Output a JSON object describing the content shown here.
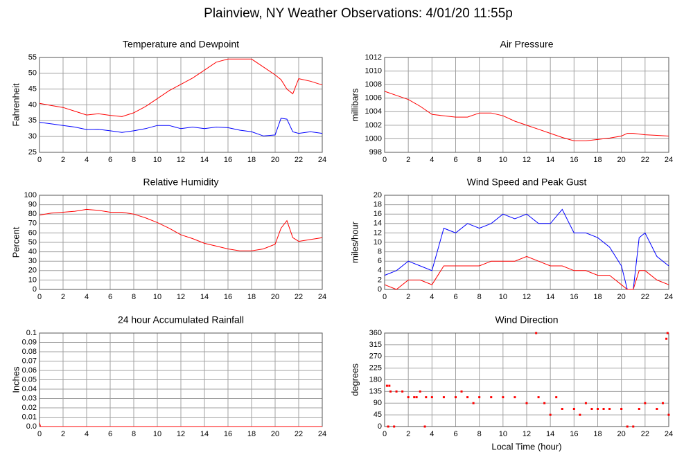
{
  "title": "Plainview, NY Weather Observations: 4/01/20 11:55p",
  "chart_data": [
    {
      "type": "line",
      "title": "Temperature and Dewpoint",
      "ylabel": "Fahrenheit",
      "x": [
        0,
        1,
        2,
        3,
        4,
        5,
        6,
        7,
        8,
        9,
        10,
        11,
        12,
        13,
        14,
        15,
        16,
        17,
        18,
        19,
        20,
        20.5,
        21,
        21.5,
        22,
        23,
        24
      ],
      "series": [
        {
          "color": "#ff0000",
          "values": [
            40.5,
            39.8,
            39.2,
            38,
            36.8,
            37.2,
            36.7,
            36.3,
            37.5,
            39.5,
            42,
            44.5,
            46.5,
            48.5,
            51,
            53.5,
            54.5,
            54.5,
            54.5,
            52,
            49.5,
            48,
            45,
            43.5,
            48.3,
            47.5,
            46.3
          ]
        },
        {
          "color": "#0000ff",
          "values": [
            34.5,
            34,
            33.5,
            33,
            32.2,
            32.3,
            31.8,
            31.3,
            31.8,
            32.5,
            33.5,
            33.5,
            32.5,
            33,
            32.5,
            33,
            32.8,
            32,
            31.5,
            30.2,
            30.5,
            35.8,
            35.5,
            31.5,
            31,
            31.5,
            31
          ]
        }
      ],
      "xlim": [
        0,
        24
      ],
      "xticks": [
        0,
        2,
        4,
        6,
        8,
        10,
        12,
        14,
        16,
        18,
        20,
        22,
        24
      ],
      "ylim": [
        25,
        55
      ],
      "yticks": [
        25,
        30,
        35,
        40,
        45,
        50,
        55
      ],
      "grid": true
    },
    {
      "type": "line",
      "title": "Air Pressure",
      "ylabel": "millibars",
      "x": [
        0,
        1,
        2,
        3,
        4,
        5,
        6,
        7,
        8,
        9,
        10,
        11,
        12,
        13,
        14,
        15,
        16,
        17,
        18,
        19,
        20,
        20.5,
        21,
        21.5,
        22,
        23,
        24
      ],
      "series": [
        {
          "color": "#ff0000",
          "values": [
            1007,
            1006.4,
            1005.8,
            1004.8,
            1003.6,
            1003.4,
            1003.2,
            1003.2,
            1003.8,
            1003.8,
            1003.4,
            1002.6,
            1002,
            1001.4,
            1000.8,
            1000.2,
            999.7,
            999.7,
            999.9,
            1000.1,
            1000.4,
            1000.8,
            1000.8,
            1000.7,
            1000.6,
            1000.5,
            1000.4
          ]
        }
      ],
      "xlim": [
        0,
        24
      ],
      "xticks": [
        0,
        2,
        4,
        6,
        8,
        10,
        12,
        14,
        16,
        18,
        20,
        22,
        24
      ],
      "ylim": [
        998,
        1012
      ],
      "yticks": [
        998,
        1000,
        1002,
        1004,
        1006,
        1008,
        1010,
        1012
      ],
      "grid": true
    },
    {
      "type": "line",
      "title": "Relative Humidity",
      "ylabel": "Percent",
      "x": [
        0,
        1,
        2,
        3,
        4,
        5,
        6,
        7,
        8,
        9,
        10,
        11,
        12,
        13,
        14,
        15,
        16,
        17,
        18,
        19,
        20,
        20.5,
        21,
        21.5,
        22,
        23,
        24
      ],
      "series": [
        {
          "color": "#ff0000",
          "values": [
            79,
            81,
            82,
            83,
            85,
            84,
            82,
            82,
            80,
            76,
            71,
            65,
            58,
            54,
            49,
            46,
            43,
            41,
            41,
            43,
            48,
            65,
            73,
            55,
            51,
            53,
            55
          ]
        }
      ],
      "xlim": [
        0,
        24
      ],
      "xticks": [
        0,
        2,
        4,
        6,
        8,
        10,
        12,
        14,
        16,
        18,
        20,
        22,
        24
      ],
      "ylim": [
        0,
        100
      ],
      "yticks": [
        0,
        10,
        20,
        30,
        40,
        50,
        60,
        70,
        80,
        90,
        100
      ],
      "grid": true
    },
    {
      "type": "line",
      "title": "Wind Speed and Peak Gust",
      "ylabel": "miles/hour",
      "x": [
        0,
        1,
        2,
        3,
        4,
        5,
        6,
        7,
        8,
        9,
        10,
        11,
        12,
        13,
        14,
        15,
        16,
        17,
        18,
        19,
        20,
        20.5,
        21,
        21.5,
        22,
        23,
        24
      ],
      "series": [
        {
          "color": "#0000ff",
          "values": [
            3,
            4,
            6,
            5,
            4,
            13,
            12,
            14,
            13,
            14,
            16,
            15,
            16,
            14,
            14,
            17,
            12,
            12,
            11,
            9,
            5,
            0,
            0,
            11,
            12,
            7,
            5
          ]
        },
        {
          "color": "#ff0000",
          "values": [
            1,
            0,
            2,
            2,
            1,
            5,
            5,
            5,
            5,
            6,
            6,
            6,
            7,
            6,
            5,
            5,
            4,
            4,
            3,
            3,
            1,
            0,
            0,
            4,
            4,
            2,
            1
          ]
        }
      ],
      "xlim": [
        0,
        24
      ],
      "xticks": [
        0,
        2,
        4,
        6,
        8,
        10,
        12,
        14,
        16,
        18,
        20,
        22,
        24
      ],
      "ylim": [
        0,
        20
      ],
      "yticks": [
        0,
        2,
        4,
        6,
        8,
        10,
        12,
        14,
        16,
        18,
        20
      ],
      "grid": true
    },
    {
      "type": "line",
      "title": "24 hour Accumulated Rainfall",
      "ylabel": "Inches",
      "x": [
        0,
        0.1,
        24
      ],
      "series": [
        {
          "color": "#ff0000",
          "values": [
            0.004,
            0,
            0
          ]
        }
      ],
      "xlim": [
        0,
        24
      ],
      "xticks": [
        0,
        2,
        4,
        6,
        8,
        10,
        12,
        14,
        16,
        18,
        20,
        22,
        24
      ],
      "ylim": [
        0,
        0.1
      ],
      "yticks": [
        {
          "value": 0,
          "label": "0.0"
        },
        0.01,
        0.02,
        0.03,
        0.04,
        0.05,
        0.06,
        0.07,
        0.08,
        0.09,
        0.1
      ],
      "grid": true
    },
    {
      "type": "scatter",
      "title": "Wind Direction",
      "ylabel": "degrees",
      "xlabel": "Local Time (hour)",
      "x": [
        0.2,
        0.3,
        0.4,
        0.5,
        0.8,
        1,
        1.5,
        2,
        2.5,
        2.7,
        3,
        3.4,
        3.5,
        4,
        5,
        6,
        6.5,
        7,
        7.5,
        8,
        9,
        10,
        11,
        12,
        12.8,
        13,
        13.5,
        14,
        14.5,
        15,
        16,
        16.5,
        17,
        17.5,
        18,
        18.5,
        19,
        20,
        20.5,
        21,
        21.5,
        22,
        23,
        23.5,
        23.8,
        23.9,
        24
      ],
      "series": [
        {
          "color": "#ff0000",
          "values": [
            157,
            0,
            157,
            135,
            0,
            135,
            135,
            113,
            113,
            113,
            135,
            0,
            113,
            113,
            113,
            113,
            135,
            113,
            90,
            113,
            113,
            113,
            113,
            90,
            360,
            113,
            90,
            45,
            113,
            68,
            68,
            45,
            90,
            68,
            68,
            68,
            68,
            68,
            0,
            0,
            68,
            90,
            68,
            90,
            338,
            360,
            45
          ]
        }
      ],
      "xlim": [
        0,
        24
      ],
      "xticks": [
        0,
        2,
        4,
        6,
        8,
        10,
        12,
        14,
        16,
        18,
        20,
        22,
        24
      ],
      "ylim": [
        0,
        360
      ],
      "yticks": [
        0,
        45,
        90,
        135,
        180,
        225,
        270,
        315,
        360
      ],
      "grid": true
    }
  ]
}
